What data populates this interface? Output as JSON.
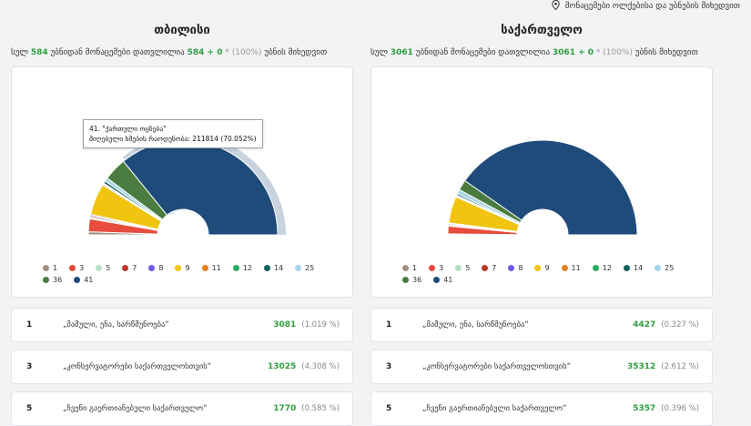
{
  "header": {
    "link_label": "მონაცემები ოლქებისა და უბნების მიხედვით",
    "link_icon": "location-pin-icon"
  },
  "columns": [
    {
      "title": "თბილისი",
      "summary": {
        "prefix": "სულ",
        "total": "584",
        "mid": "უბნიდან მონაცემები დათვლილია",
        "counted": "584 + 0",
        "star": "*",
        "pct": "(100%)",
        "suffix": "უბნის მიხედვით"
      },
      "tooltip": {
        "line1": "41. \"ქართული ოცნება\"",
        "line2": "მიღებული ხმების რაოდენობა: 211814 (70.052%)"
      },
      "chart_data": {
        "type": "pie",
        "categories": [
          "1",
          "3",
          "5",
          "7",
          "8",
          "9",
          "11",
          "12",
          "14",
          "25",
          "36",
          "41"
        ],
        "values": [
          1.019,
          4.308,
          0.585,
          0.5,
          0.4,
          10.5,
          0.4,
          0.3,
          0.8,
          1.2,
          7.7,
          70.052
        ],
        "colors": [
          "#a49081",
          "#e74c3c",
          "#b5e0c5",
          "#c0392b",
          "#6c5ce7",
          "#f1c40f",
          "#e67e22",
          "#27ae60",
          "#16615e",
          "#a8d4e6",
          "#4a7c3f",
          "#1f4b7a"
        ],
        "highlighted": "41"
      },
      "rows": [
        {
          "num": "1",
          "name": "„მამული, ენა, სარწმუნოება“",
          "votes": "3081",
          "pct": "(1.019 %)"
        },
        {
          "num": "3",
          "name": "„კონსერვატორები საქართველოსთვის“",
          "votes": "13025",
          "pct": "(4.308 %)"
        },
        {
          "num": "5",
          "name": "„ჩვენი გაერთიანებული საქართველო“",
          "votes": "1770",
          "pct": "(0.585 %)"
        }
      ]
    },
    {
      "title": "საქართველო",
      "summary": {
        "prefix": "სულ",
        "total": "3061",
        "mid": "უბნიდან მონაცემები დათვლილია",
        "counted": "3061 + 0",
        "star": "*",
        "pct": "(100%)",
        "suffix": "უბნის მიხედვით"
      },
      "chart_data": {
        "type": "pie",
        "categories": [
          "1",
          "3",
          "5",
          "7",
          "8",
          "9",
          "11",
          "12",
          "14",
          "25",
          "36",
          "41"
        ],
        "values": [
          0.327,
          2.612,
          0.396,
          0.4,
          0.3,
          9.0,
          0.3,
          0.3,
          0.6,
          1.5,
          3.5,
          80.0
        ],
        "colors": [
          "#a49081",
          "#e74c3c",
          "#b5e0c5",
          "#c0392b",
          "#6c5ce7",
          "#f1c40f",
          "#e67e22",
          "#27ae60",
          "#16615e",
          "#a8d4e6",
          "#4a7c3f",
          "#1f4b7a"
        ]
      },
      "rows": [
        {
          "num": "1",
          "name": "„მამული, ენა, სარწმუნოება“",
          "votes": "4427",
          "pct": "(0.327 %)"
        },
        {
          "num": "3",
          "name": "„კონსერვატორები საქართველოსთვის“",
          "votes": "35312",
          "pct": "(2.612 %)"
        },
        {
          "num": "5",
          "name": "„ჩვენი გაერთიანებული საქართველო“",
          "votes": "5357",
          "pct": "(0.396 %)"
        }
      ]
    }
  ],
  "legend": [
    {
      "label": "1",
      "color": "#a49081"
    },
    {
      "label": "3",
      "color": "#e74c3c"
    },
    {
      "label": "5",
      "color": "#b5e0c5"
    },
    {
      "label": "7",
      "color": "#c0392b"
    },
    {
      "label": "8",
      "color": "#6c5ce7"
    },
    {
      "label": "9",
      "color": "#f1c40f"
    },
    {
      "label": "11",
      "color": "#e67e22"
    },
    {
      "label": "12",
      "color": "#27ae60"
    },
    {
      "label": "14",
      "color": "#16615e"
    },
    {
      "label": "25",
      "color": "#a8d4e6"
    },
    {
      "label": "36",
      "color": "#4a7c3f"
    },
    {
      "label": "41",
      "color": "#1f4b7a"
    }
  ]
}
